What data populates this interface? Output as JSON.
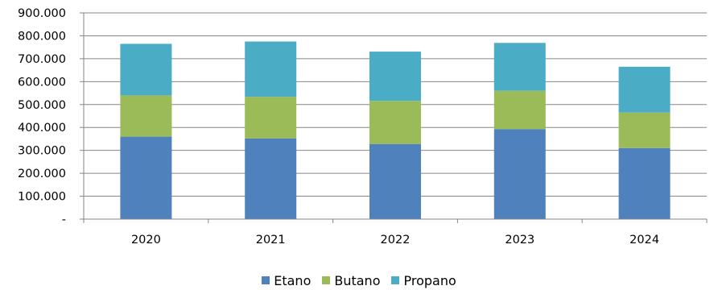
{
  "chart_data": {
    "type": "bar",
    "stacked": true,
    "categories": [
      "2020",
      "2021",
      "2022",
      "2023",
      "2024"
    ],
    "series": [
      {
        "name": "Etano",
        "color": "#4f81bd",
        "values": [
          360000,
          352000,
          328000,
          393000,
          310000
        ]
      },
      {
        "name": "Butano",
        "color": "#9bbb59",
        "values": [
          180000,
          182000,
          188000,
          167000,
          155000
        ]
      },
      {
        "name": "Propano",
        "color": "#4bacc6",
        "values": [
          225000,
          241000,
          215000,
          209000,
          200000
        ]
      }
    ],
    "ylim": [
      0,
      900000
    ],
    "y_ticks": [
      {
        "value": 900000,
        "label": "900.000"
      },
      {
        "value": 800000,
        "label": "800.000"
      },
      {
        "value": 700000,
        "label": "700.000"
      },
      {
        "value": 600000,
        "label": "600.000"
      },
      {
        "value": 500000,
        "label": "500.000"
      },
      {
        "value": 400000,
        "label": "400.000"
      },
      {
        "value": 300000,
        "label": "300.000"
      },
      {
        "value": 200000,
        "label": "200.000"
      },
      {
        "value": 100000,
        "label": "100.000"
      },
      {
        "value": 0,
        "label": "-"
      }
    ],
    "grid": true,
    "legend_position": "bottom"
  }
}
